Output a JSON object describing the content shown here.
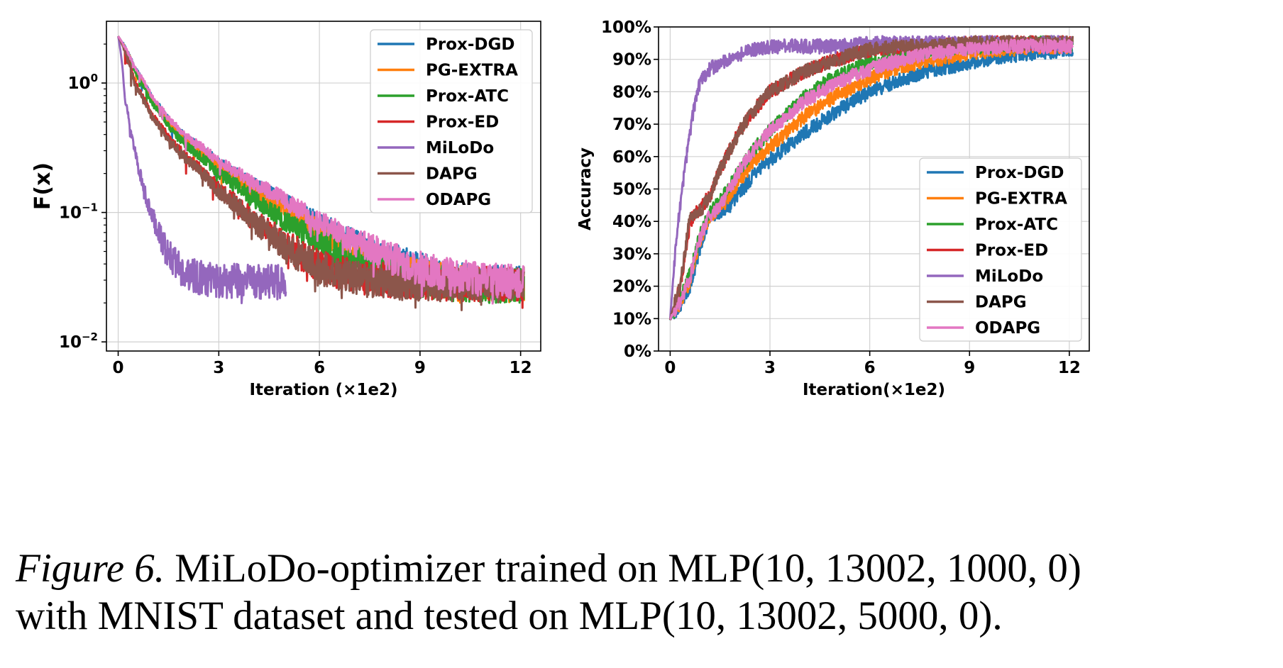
{
  "chart_data": [
    {
      "type": "line",
      "xlabel": "Iteration (×1e2)",
      "ylabel": "F(x)",
      "yscale": "log",
      "xlim": [
        -0.35,
        12.6
      ],
      "ylim": [
        0.0085,
        3.0
      ],
      "xticks": [
        0,
        3,
        6,
        9,
        12
      ],
      "yticks": [
        {
          "value": 1,
          "exp": "0"
        },
        {
          "value": 0.1,
          "exp": "−1"
        },
        {
          "value": 0.01,
          "exp": "−2"
        }
      ],
      "grid": true,
      "legend": "top-right",
      "series": [
        {
          "name": "Prox-DGD",
          "color": "#1f77b4",
          "x": [
            0,
            0.5,
            1,
            1.5,
            2,
            3,
            4,
            5,
            6,
            7,
            8,
            9,
            10,
            11,
            12.1
          ],
          "y": [
            2.3,
            1.3,
            0.78,
            0.52,
            0.38,
            0.24,
            0.165,
            0.118,
            0.08,
            0.058,
            0.044,
            0.036,
            0.031,
            0.029,
            0.028
          ]
        },
        {
          "name": "PG-EXTRA",
          "color": "#ff7f0e",
          "x": [
            0,
            0.5,
            1,
            1.5,
            2,
            3,
            4,
            5,
            6,
            7,
            8,
            9,
            10,
            11,
            12.1
          ],
          "y": [
            2.3,
            1.25,
            0.74,
            0.5,
            0.36,
            0.22,
            0.148,
            0.102,
            0.07,
            0.05,
            0.039,
            0.032,
            0.029,
            0.028,
            0.027
          ]
        },
        {
          "name": "Prox-ATC",
          "color": "#2ca02c",
          "x": [
            0,
            0.5,
            1,
            1.5,
            2,
            3,
            4,
            5,
            6,
            7,
            8,
            9,
            10,
            11,
            12.1
          ],
          "y": [
            2.3,
            1.2,
            0.7,
            0.46,
            0.33,
            0.2,
            0.128,
            0.085,
            0.057,
            0.042,
            0.034,
            0.03,
            0.028,
            0.027,
            0.027
          ]
        },
        {
          "name": "Prox-ED",
          "color": "#d62728",
          "x": [
            0,
            0.5,
            1,
            1.5,
            2,
            3,
            4,
            5,
            6,
            7,
            8,
            9,
            10,
            11,
            12.1
          ],
          "y": [
            2.3,
            1.0,
            0.57,
            0.38,
            0.27,
            0.15,
            0.088,
            0.055,
            0.038,
            0.032,
            0.03,
            0.029,
            0.028,
            0.028,
            0.028
          ]
        },
        {
          "name": "MiLoDo",
          "color": "#9467bd",
          "x": [
            0,
            0.2,
            0.4,
            0.6,
            0.8,
            1,
            1.2,
            1.5,
            2,
            2.5,
            3,
            4,
            5
          ],
          "y": [
            2.3,
            0.75,
            0.38,
            0.22,
            0.14,
            0.095,
            0.07,
            0.045,
            0.034,
            0.031,
            0.03,
            0.029,
            0.029
          ]
        },
        {
          "name": "DAPG",
          "color": "#8c564b",
          "x": [
            0,
            0.5,
            1,
            1.5,
            2,
            3,
            4,
            5,
            6,
            7,
            8,
            9,
            10,
            11,
            12.1
          ],
          "y": [
            2.3,
            0.95,
            0.55,
            0.36,
            0.26,
            0.145,
            0.085,
            0.053,
            0.037,
            0.031,
            0.029,
            0.028,
            0.028,
            0.028,
            0.028
          ]
        },
        {
          "name": "ODAPG",
          "color": "#e377c2",
          "x": [
            0,
            0.5,
            1,
            1.5,
            2,
            3,
            4,
            5,
            6,
            7,
            8,
            9,
            10,
            11,
            12.1
          ],
          "y": [
            2.3,
            1.3,
            0.79,
            0.53,
            0.39,
            0.245,
            0.17,
            0.122,
            0.083,
            0.06,
            0.045,
            0.037,
            0.032,
            0.03,
            0.029
          ]
        }
      ]
    },
    {
      "type": "line",
      "xlabel": "Iteration(×1e2)",
      "ylabel": "Accuracy",
      "xlim": [
        -0.35,
        12.6
      ],
      "ylim": [
        0,
        100
      ],
      "xticks": [
        0,
        3,
        6,
        9,
        12
      ],
      "yticks": [
        0,
        10,
        20,
        30,
        40,
        50,
        60,
        70,
        80,
        90,
        100
      ],
      "ytick_labels": [
        "0%",
        "10%",
        "20%",
        "30%",
        "40%",
        "50%",
        "60%",
        "70%",
        "80%",
        "90%",
        "100%"
      ],
      "grid": true,
      "legend": "center-right",
      "series": [
        {
          "name": "Prox-DGD",
          "color": "#1f77b4",
          "x": [
            0,
            0.3,
            0.6,
            0.9,
            1.2,
            1.5,
            1.8,
            2.1,
            2.5,
            3,
            4,
            5,
            6,
            7,
            8,
            9,
            10,
            11,
            12.1
          ],
          "y": [
            10,
            14,
            20,
            32,
            42,
            43,
            45,
            49,
            54,
            59,
            67,
            74,
            80,
            84,
            87,
            89,
            91,
            92,
            93
          ]
        },
        {
          "name": "PG-EXTRA",
          "color": "#ff7f0e",
          "x": [
            0,
            0.3,
            0.6,
            0.9,
            1.2,
            1.5,
            1.8,
            2.1,
            2.5,
            3,
            4,
            5,
            6,
            7,
            8,
            9,
            10,
            11,
            12.1
          ],
          "y": [
            10,
            15,
            22,
            34,
            42,
            44,
            48,
            53,
            58,
            63,
            72,
            79,
            84,
            88,
            90,
            92,
            93,
            94,
            94
          ]
        },
        {
          "name": "Prox-ATC",
          "color": "#2ca02c",
          "x": [
            0,
            0.3,
            0.6,
            0.9,
            1.2,
            1.5,
            1.8,
            2.1,
            2.5,
            3,
            4,
            5,
            6,
            7,
            8,
            9,
            10,
            11,
            12.1
          ],
          "y": [
            10,
            16,
            24,
            36,
            43,
            46,
            51,
            56,
            62,
            68,
            78,
            85,
            89,
            92,
            93,
            94,
            94,
            95,
            95
          ]
        },
        {
          "name": "Prox-ED",
          "color": "#d62728",
          "x": [
            0,
            0.3,
            0.6,
            0.9,
            1.2,
            1.5,
            1.8,
            2.1,
            2.5,
            3,
            4,
            5,
            6,
            7,
            8,
            9,
            10,
            11,
            12.1
          ],
          "y": [
            10,
            20,
            40,
            44,
            48,
            56,
            62,
            68,
            74,
            80,
            86,
            90,
            93,
            94,
            94,
            95,
            95,
            95,
            95
          ]
        },
        {
          "name": "MiLoDo",
          "color": "#9467bd",
          "x": [
            0,
            0.15,
            0.3,
            0.45,
            0.6,
            0.75,
            0.9,
            1.2,
            1.5,
            2,
            2.5,
            3,
            4,
            5,
            6,
            7,
            8,
            9,
            10,
            11,
            12.1
          ],
          "y": [
            10,
            30,
            45,
            57,
            68,
            77,
            83,
            87,
            89,
            91,
            93,
            94,
            94,
            94,
            95,
            95,
            95,
            95,
            95,
            95,
            95
          ]
        },
        {
          "name": "DAPG",
          "color": "#8c564b",
          "x": [
            0,
            0.3,
            0.6,
            0.9,
            1.2,
            1.5,
            1.8,
            2.1,
            2.5,
            3,
            4,
            5,
            6,
            7,
            8,
            9,
            10,
            11,
            12.1
          ],
          "y": [
            10,
            20,
            42,
            43,
            48,
            56,
            62,
            68,
            74,
            80,
            86,
            90,
            93,
            94,
            94,
            95,
            95,
            95,
            95
          ]
        },
        {
          "name": "ODAPG",
          "color": "#e377c2",
          "x": [
            0,
            0.3,
            0.6,
            0.9,
            1.2,
            1.5,
            1.8,
            2.1,
            2.5,
            3,
            4,
            5,
            6,
            7,
            8,
            9,
            10,
            11,
            12.1
          ],
          "y": [
            10,
            15,
            23,
            35,
            42,
            45,
            50,
            56,
            62,
            68,
            77,
            83,
            87,
            90,
            92,
            93,
            94,
            94,
            94
          ]
        }
      ]
    }
  ],
  "caption": {
    "figure_label": "Figure 6.",
    "text_1": " MiLoDo-optimizer trained on MLP(10, 13002, 1000, 0)",
    "text_2": "with MNIST dataset and tested on MLP(10, 13002, 5000, 0)."
  }
}
